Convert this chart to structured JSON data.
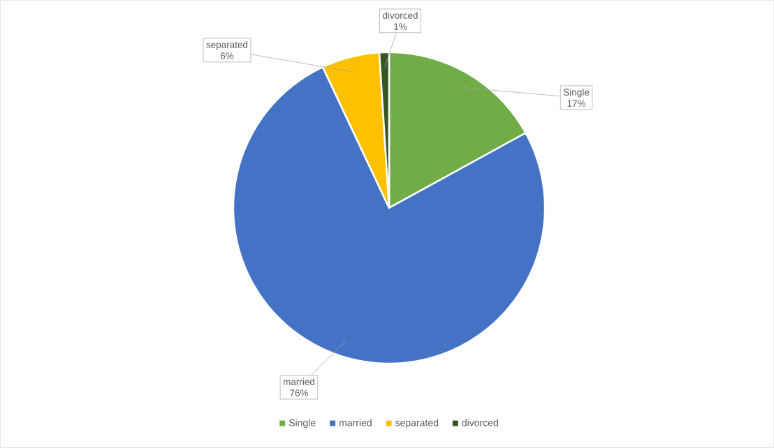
{
  "chart_data": {
    "type": "pie",
    "categories": [
      "Single",
      "married",
      "separated",
      "divorced"
    ],
    "values": [
      17,
      76,
      6,
      1
    ],
    "colors": [
      "#70ad47",
      "#4472c4",
      "#ffc000",
      "#375623"
    ],
    "value_labels": [
      "17%",
      "76%",
      "6%",
      "1%"
    ],
    "legend": "bottom"
  }
}
